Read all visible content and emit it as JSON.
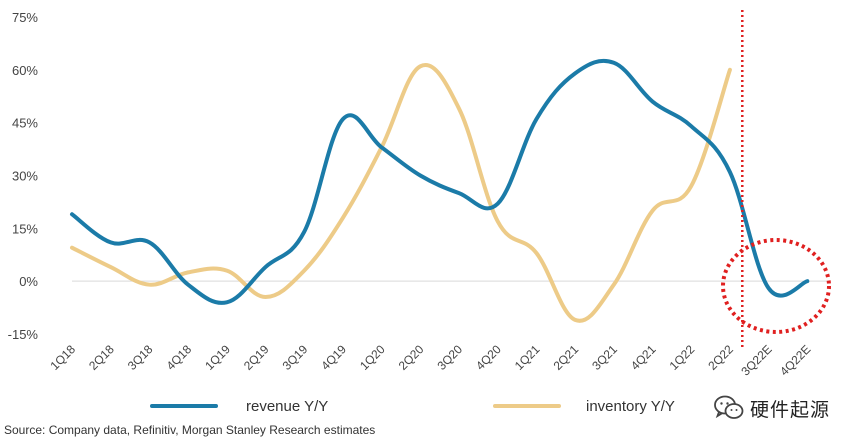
{
  "chart_data": {
    "type": "line",
    "source": "Source: Company data, Refinitiv, Morgan Stanley Research estimates",
    "categories": [
      "1Q18",
      "2Q18",
      "3Q18",
      "4Q18",
      "1Q19",
      "2Q19",
      "3Q19",
      "4Q19",
      "1Q20",
      "2Q20",
      "3Q20",
      "4Q20",
      "1Q21",
      "2Q21",
      "3Q21",
      "4Q21",
      "1Q22",
      "2Q22",
      "3Q22E",
      "4Q22E"
    ],
    "ylim": [
      -15,
      75
    ],
    "yticks": [
      -15,
      0,
      15,
      30,
      45,
      60,
      75
    ],
    "ytick_labels": [
      "-15%",
      "0%",
      "15%",
      "30%",
      "45%",
      "60%",
      "75%"
    ],
    "grid": false,
    "zero_line": true,
    "legend_position": "bottom",
    "series": [
      {
        "name": "revenue Y/Y",
        "color": "#1B7BA8",
        "values": [
          19,
          11,
          11,
          -1,
          -6,
          4,
          14,
          46,
          38,
          30,
          25,
          22,
          46,
          59,
          62,
          51,
          44,
          31,
          -2,
          0
        ]
      },
      {
        "name": "inventory Y/Y",
        "color": "#EDCB88",
        "values": [
          9.5,
          4,
          -1,
          2.5,
          3,
          -4.5,
          3,
          18,
          38,
          61,
          49,
          17,
          8,
          -11,
          -1,
          20,
          27,
          60,
          null,
          null
        ]
      }
    ],
    "annotations": {
      "forecast_divider_after": "2Q22",
      "divider_color": "#E02020",
      "highlight_circle": "3Q22E-4Q22E"
    }
  },
  "watermark": {
    "text": "硬件起源",
    "icon": "wechat-icon"
  }
}
